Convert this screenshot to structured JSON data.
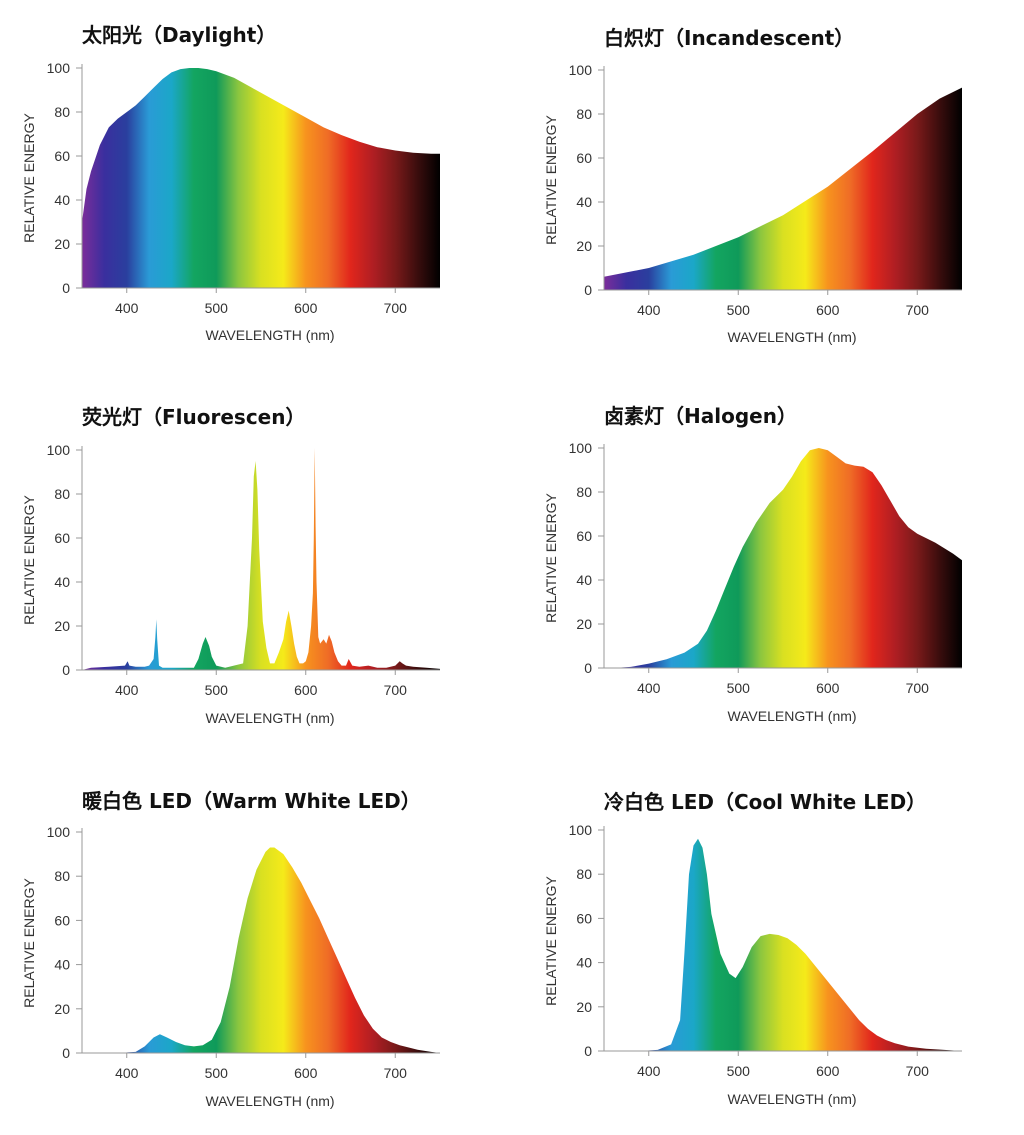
{
  "spectrum_gradient": [
    "#7b2d9a",
    "#3a2f9e",
    "#2a3f9e",
    "#2a9bd6",
    "#1ba7c8",
    "#13a560",
    "#0f9a5a",
    "#8cc63f",
    "#d9e021",
    "#f5ea1a",
    "#f7931e",
    "#ef6c26",
    "#e1261c",
    "#b01e23",
    "#7a1a1a",
    "#3a0d0d",
    "#000000"
  ],
  "chart_data": [
    {
      "type": "area",
      "title": "太阳光（Daylight）",
      "xlabel": "WAVELENGTH (nm)",
      "ylabel": "RELATIVE ENERGY",
      "xlim": [
        350,
        750
      ],
      "ylim": [
        0,
        100
      ],
      "xticks": [
        400,
        500,
        600,
        700
      ],
      "yticks": [
        0,
        20,
        40,
        60,
        80,
        100
      ],
      "x": [
        350,
        355,
        360,
        370,
        380,
        390,
        400,
        410,
        420,
        430,
        440,
        450,
        460,
        470,
        480,
        490,
        500,
        520,
        540,
        560,
        580,
        600,
        620,
        640,
        660,
        680,
        700,
        720,
        740,
        750
      ],
      "y": [
        30,
        45,
        53,
        65,
        73,
        77,
        80,
        83,
        87,
        91,
        95,
        98,
        99.5,
        100,
        100,
        99.5,
        98.5,
        95.5,
        91,
        86.5,
        82,
        77.5,
        73,
        69.5,
        66.5,
        64,
        62.5,
        61.5,
        61,
        61
      ]
    },
    {
      "type": "area",
      "title": "白炽灯（Incandescent）",
      "xlabel": "WAVELENGTH (nm)",
      "ylabel": "RELATIVE ENERGY",
      "xlim": [
        350,
        750
      ],
      "ylim": [
        0,
        100
      ],
      "xticks": [
        400,
        500,
        600,
        700
      ],
      "yticks": [
        0,
        20,
        40,
        60,
        80,
        100
      ],
      "x": [
        350,
        400,
        450,
        500,
        550,
        600,
        650,
        700,
        725,
        750
      ],
      "y": [
        6,
        10,
        16,
        24,
        34,
        47,
        63,
        80,
        87,
        92
      ]
    },
    {
      "type": "area",
      "title": "荧光灯（Fluorescen）",
      "xlabel": "WAVELENGTH (nm)",
      "ylabel": "RELATIVE ENERGY",
      "xlim": [
        350,
        750
      ],
      "ylim": [
        0,
        100
      ],
      "xticks": [
        400,
        500,
        600,
        700
      ],
      "yticks": [
        0,
        20,
        40,
        60,
        80,
        100
      ],
      "x": [
        350,
        360,
        380,
        398,
        401,
        403,
        410,
        420,
        425,
        430,
        432,
        433,
        434,
        436,
        440,
        460,
        475,
        480,
        485,
        488,
        492,
        495,
        500,
        510,
        530,
        535,
        540,
        542,
        544,
        546,
        548,
        552,
        556,
        560,
        565,
        570,
        575,
        578,
        581,
        584,
        587,
        590,
        593,
        597,
        600,
        603,
        606,
        608,
        609,
        610,
        611,
        612,
        614,
        616,
        620,
        623,
        626,
        629,
        632,
        636,
        640,
        645,
        648,
        652,
        660,
        670,
        680,
        690,
        700,
        705,
        708,
        712,
        720,
        735,
        750
      ],
      "y": [
        0,
        1,
        1.5,
        2,
        4,
        2,
        1.5,
        1.5,
        2,
        5,
        15,
        23,
        14,
        2,
        1,
        1,
        1,
        5,
        12,
        15,
        11,
        6,
        2,
        1,
        3,
        20,
        60,
        88,
        95,
        82,
        55,
        22,
        10,
        3,
        3,
        8,
        14,
        22,
        27,
        20,
        12,
        6,
        3,
        3,
        4,
        8,
        20,
        35,
        60,
        101,
        65,
        40,
        15,
        12,
        14,
        12,
        16,
        13,
        8,
        4,
        2,
        2,
        5,
        2,
        1.5,
        2,
        1,
        1,
        2,
        4,
        3,
        2,
        1.5,
        1,
        0.5
      ]
    },
    {
      "type": "area",
      "title": "卤素灯（Halogen）",
      "xlabel": "WAVELENGTH (nm)",
      "ylabel": "RELATIVE ENERGY",
      "xlim": [
        350,
        750
      ],
      "ylim": [
        0,
        100
      ],
      "xticks": [
        400,
        500,
        600,
        700
      ],
      "yticks": [
        0,
        20,
        40,
        60,
        80,
        100
      ],
      "x": [
        350,
        360,
        380,
        400,
        420,
        440,
        455,
        465,
        475,
        485,
        495,
        505,
        520,
        535,
        550,
        560,
        570,
        580,
        590,
        600,
        610,
        620,
        630,
        640,
        650,
        660,
        670,
        680,
        690,
        700,
        720,
        740,
        750
      ],
      "y": [
        0,
        0,
        0.5,
        2,
        4,
        7,
        11,
        17,
        26,
        36,
        46,
        55,
        66,
        75,
        81,
        87,
        94,
        99,
        100,
        99,
        96,
        93,
        92,
        91.5,
        89,
        83,
        76,
        69,
        64,
        61,
        57,
        52,
        49
      ]
    },
    {
      "type": "area",
      "title": "暖白色 LED（Warm White LED）",
      "xlabel": "WAVELENGTH (nm)",
      "ylabel": "RELATIVE ENERGY",
      "xlim": [
        350,
        750
      ],
      "ylim": [
        0,
        100
      ],
      "xticks": [
        400,
        500,
        600,
        700
      ],
      "yticks": [
        0,
        20,
        40,
        60,
        80,
        100
      ],
      "x": [
        350,
        390,
        410,
        420,
        430,
        437,
        445,
        455,
        465,
        475,
        485,
        495,
        505,
        515,
        525,
        535,
        545,
        555,
        560,
        565,
        575,
        585,
        595,
        605,
        615,
        625,
        635,
        645,
        655,
        665,
        675,
        685,
        695,
        705,
        715,
        725,
        740,
        750
      ],
      "y": [
        0,
        0,
        0.5,
        3,
        7,
        8.5,
        7,
        5,
        3.5,
        3,
        3.5,
        6,
        14,
        30,
        52,
        70,
        83,
        91,
        93,
        93,
        90,
        84,
        77,
        69,
        61,
        52,
        43,
        34,
        25,
        17,
        11,
        7,
        5,
        3.5,
        2.5,
        1.5,
        0.5,
        0
      ]
    },
    {
      "type": "area",
      "title": "冷白色 LED（Cool White LED）",
      "xlabel": "WAVELENGTH (nm)",
      "ylabel": "RELATIVE ENERGY",
      "xlim": [
        350,
        750
      ],
      "ylim": [
        0,
        100
      ],
      "xticks": [
        400,
        500,
        600,
        700
      ],
      "yticks": [
        0,
        20,
        40,
        60,
        80,
        100
      ],
      "x": [
        350,
        390,
        410,
        425,
        435,
        440,
        445,
        450,
        455,
        460,
        465,
        470,
        480,
        490,
        497,
        505,
        515,
        525,
        535,
        545,
        555,
        565,
        575,
        585,
        595,
        605,
        615,
        625,
        635,
        645,
        655,
        665,
        675,
        690,
        710,
        730,
        750
      ],
      "y": [
        0,
        0,
        0.5,
        3,
        14,
        45,
        80,
        93,
        96,
        92,
        80,
        62,
        44,
        35,
        33,
        38,
        47,
        52,
        53,
        52.5,
        51,
        48,
        44,
        39,
        34,
        29,
        24,
        19,
        14,
        10,
        7,
        5,
        3.5,
        2,
        1,
        0.5,
        0
      ]
    }
  ]
}
